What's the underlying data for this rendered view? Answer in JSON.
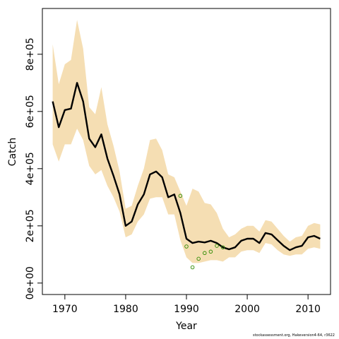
{
  "chart_data": {
    "type": "line",
    "xlabel": "Year",
    "ylabel": "Catch",
    "xlim": [
      1966.3,
      2013.7
    ],
    "ylim": [
      -40000,
      960000
    ],
    "x_ticks": [
      1970,
      1980,
      1990,
      2000,
      2010
    ],
    "x_tick_labels": [
      "1970",
      "1980",
      "1990",
      "2000",
      "2010"
    ],
    "y_ticks": [
      0,
      200000,
      400000,
      600000,
      800000
    ],
    "y_tick_labels": [
      "0e+00",
      "2e+05",
      "4e+05",
      "6e+05",
      "8e+05"
    ],
    "grid": false,
    "band_color": "#f5deb3",
    "line_color": "#000000",
    "point_color": "#2e8b00",
    "series": [
      {
        "type": "line",
        "x": [
          1968,
          1969,
          1970,
          1971,
          1972,
          1973,
          1974,
          1975,
          1976,
          1977,
          1978,
          1979,
          1980,
          1981,
          1982,
          1983,
          1984,
          1985,
          1986,
          1987,
          1988,
          1989,
          1990,
          1991,
          1992,
          1993,
          1994,
          1995,
          1996,
          1997,
          1998,
          1999,
          2000,
          2001,
          2002,
          2003,
          2004,
          2005,
          2006,
          2007,
          2008,
          2009,
          2010,
          2011,
          2012
        ],
        "values": [
          635000,
          545000,
          605000,
          610000,
          700000,
          635000,
          505000,
          475000,
          520000,
          435000,
          375000,
          310000,
          200000,
          215000,
          275000,
          310000,
          380000,
          390000,
          370000,
          300000,
          310000,
          245000,
          155000,
          140000,
          145000,
          142000,
          148000,
          140000,
          125000,
          118000,
          125000,
          148000,
          155000,
          155000,
          140000,
          175000,
          170000,
          150000,
          130000,
          115000,
          125000,
          130000,
          160000,
          165000,
          155000
        ]
      },
      {
        "type": "band",
        "x": [
          1968,
          1969,
          1970,
          1971,
          1972,
          1973,
          1974,
          1975,
          1976,
          1977,
          1978,
          1979,
          1980,
          1981,
          1982,
          1983,
          1984,
          1985,
          1986,
          1987,
          1988,
          1989,
          1990,
          1991,
          1992,
          1993,
          1994,
          1995,
          1996,
          1997,
          1998,
          1999,
          2000,
          2001,
          2002,
          2003,
          2004,
          2005,
          2006,
          2007,
          2008,
          2009,
          2010,
          2011,
          2012
        ],
        "upper": [
          835000,
          695000,
          765000,
          780000,
          920000,
          820000,
          615000,
          590000,
          685000,
          555000,
          480000,
          390000,
          260000,
          270000,
          340000,
          400000,
          500000,
          505000,
          465000,
          380000,
          370000,
          320000,
          270000,
          330000,
          320000,
          280000,
          275000,
          245000,
          190000,
          160000,
          170000,
          190000,
          200000,
          200000,
          180000,
          220000,
          215000,
          190000,
          165000,
          145000,
          160000,
          165000,
          200000,
          210000,
          205000
        ],
        "lower": [
          485000,
          425000,
          485000,
          485000,
          540000,
          500000,
          410000,
          380000,
          395000,
          340000,
          300000,
          250000,
          160000,
          170000,
          215000,
          240000,
          295000,
          300000,
          300000,
          240000,
          240000,
          150000,
          90000,
          70000,
          70000,
          75000,
          80000,
          80000,
          75000,
          90000,
          90000,
          110000,
          115000,
          115000,
          105000,
          140000,
          135000,
          115000,
          100000,
          95000,
          100000,
          100000,
          120000,
          125000,
          120000
        ]
      },
      {
        "type": "scatter",
        "x": [
          1989,
          1990,
          1991,
          1992,
          1993,
          1994,
          1995,
          1996
        ],
        "values": [
          305000,
          128000,
          55000,
          85000,
          105000,
          110000,
          130000,
          125000
        ]
      }
    ]
  },
  "credit": "stockassessment.org, Hakeversion4-64, r3622"
}
